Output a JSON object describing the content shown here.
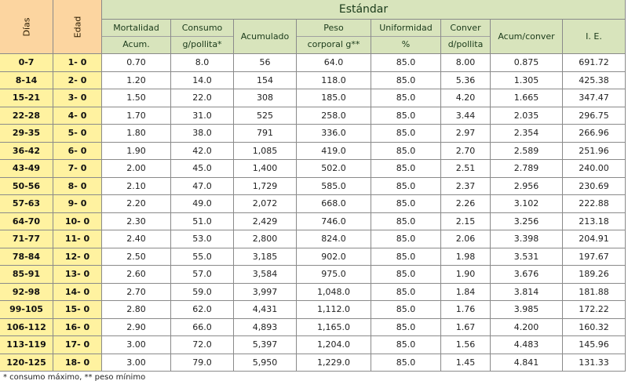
{
  "table": {
    "group_header": "Estándar",
    "columns": [
      [
        "Días"
      ],
      [
        "Edad"
      ],
      [
        "Mortalidad",
        "Acum."
      ],
      [
        "Consumo",
        "g/pollita*"
      ],
      [
        "Acumulado"
      ],
      [
        "Peso",
        "corporal g**"
      ],
      [
        "Uniformidad",
        "%"
      ],
      [
        "Conver",
        "d/pollita"
      ],
      [
        "Acum/conver"
      ],
      [
        "I. E."
      ]
    ],
    "rows": [
      [
        "0-7",
        "1- 0",
        "0.70",
        "8.0",
        "56",
        "64.0",
        "85.0",
        "8.00",
        "0.875",
        "691.72"
      ],
      [
        "8-14",
        "2- 0",
        "1.20",
        "14.0",
        "154",
        "118.0",
        "85.0",
        "5.36",
        "1.305",
        "425.38"
      ],
      [
        "15-21",
        "3- 0",
        "1.50",
        "22.0",
        "308",
        "185.0",
        "85.0",
        "4.20",
        "1.665",
        "347.47"
      ],
      [
        "22-28",
        "4- 0",
        "1.70",
        "31.0",
        "525",
        "258.0",
        "85.0",
        "3.44",
        "2.035",
        "296.75"
      ],
      [
        "29-35",
        "5- 0",
        "1.80",
        "38.0",
        "791",
        "336.0",
        "85.0",
        "2.97",
        "2.354",
        "266.96"
      ],
      [
        "36-42",
        "6- 0",
        "1.90",
        "42.0",
        "1,085",
        "419.0",
        "85.0",
        "2.70",
        "2.589",
        "251.96"
      ],
      [
        "43-49",
        "7- 0",
        "2.00",
        "45.0",
        "1,400",
        "502.0",
        "85.0",
        "2.51",
        "2.789",
        "240.00"
      ],
      [
        "50-56",
        "8- 0",
        "2.10",
        "47.0",
        "1,729",
        "585.0",
        "85.0",
        "2.37",
        "2.956",
        "230.69"
      ],
      [
        "57-63",
        "9- 0",
        "2.20",
        "49.0",
        "2,072",
        "668.0",
        "85.0",
        "2.26",
        "3.102",
        "222.88"
      ],
      [
        "64-70",
        "10- 0",
        "2.30",
        "51.0",
        "2,429",
        "746.0",
        "85.0",
        "2.15",
        "3.256",
        "213.18"
      ],
      [
        "71-77",
        "11- 0",
        "2.40",
        "53.0",
        "2,800",
        "824.0",
        "85.0",
        "2.06",
        "3.398",
        "204.91"
      ],
      [
        "78-84",
        "12- 0",
        "2.50",
        "55.0",
        "3,185",
        "902.0",
        "85.0",
        "1.98",
        "3.531",
        "197.67"
      ],
      [
        "85-91",
        "13- 0",
        "2.60",
        "57.0",
        "3,584",
        "975.0",
        "85.0",
        "1.90",
        "3.676",
        "189.26"
      ],
      [
        "92-98",
        "14- 0",
        "2.70",
        "59.0",
        "3,997",
        "1,048.0",
        "85.0",
        "1.84",
        "3.814",
        "181.88"
      ],
      [
        "99-105",
        "15- 0",
        "2.80",
        "62.0",
        "4,431",
        "1,112.0",
        "85.0",
        "1.76",
        "3.985",
        "172.22"
      ],
      [
        "106-112",
        "16- 0",
        "2.90",
        "66.0",
        "4,893",
        "1,165.0",
        "85.0",
        "1.67",
        "4.200",
        "160.32"
      ],
      [
        "113-119",
        "17- 0",
        "3.00",
        "72.0",
        "5,397",
        "1,204.0",
        "85.0",
        "1.56",
        "4.483",
        "145.96"
      ],
      [
        "120-125",
        "18- 0",
        "3.00",
        "79.0",
        "5,950",
        "1,229.0",
        "85.0",
        "1.45",
        "4.841",
        "131.33"
      ]
    ]
  },
  "footnote": "* consumo máximo, ** peso mínimo"
}
